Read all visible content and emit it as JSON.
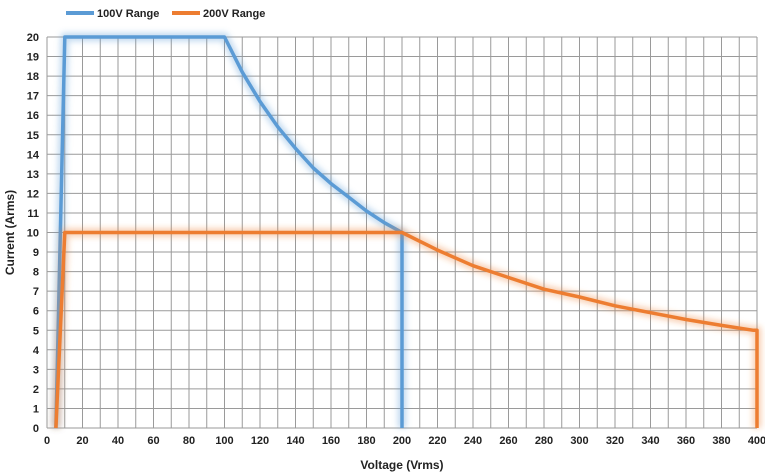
{
  "chart_data": {
    "type": "line",
    "title": "",
    "xlabel": "Voltage (Vrms)",
    "ylabel": "Current (Arms)",
    "xlim": [
      0,
      400
    ],
    "ylim": [
      0,
      20
    ],
    "x_ticks": [
      0,
      20,
      40,
      60,
      80,
      100,
      120,
      140,
      160,
      180,
      200,
      220,
      240,
      260,
      280,
      300,
      320,
      340,
      360,
      380,
      400
    ],
    "y_ticks": [
      0,
      1,
      2,
      3,
      4,
      5,
      6,
      7,
      8,
      9,
      10,
      11,
      12,
      13,
      14,
      15,
      16,
      17,
      18,
      19,
      20
    ],
    "grid": true,
    "legend_position": "top-left",
    "series": [
      {
        "name": "100V Range",
        "color": "#5b9bd5",
        "points": [
          [
            5,
            0
          ],
          [
            10,
            20
          ],
          [
            100,
            20
          ],
          [
            110,
            18.2
          ],
          [
            120,
            16.7
          ],
          [
            130,
            15.4
          ],
          [
            140,
            14.3
          ],
          [
            150,
            13.3
          ],
          [
            160,
            12.5
          ],
          [
            170,
            11.8
          ],
          [
            180,
            11.1
          ],
          [
            190,
            10.5
          ],
          [
            200,
            10
          ],
          [
            200,
            0
          ]
        ]
      },
      {
        "name": "200V Range",
        "color": "#ed7d31",
        "points": [
          [
            5,
            0
          ],
          [
            10,
            10
          ],
          [
            200,
            10
          ],
          [
            220,
            9.1
          ],
          [
            240,
            8.3
          ],
          [
            260,
            7.7
          ],
          [
            280,
            7.1
          ],
          [
            300,
            6.7
          ],
          [
            320,
            6.25
          ],
          [
            340,
            5.9
          ],
          [
            360,
            5.55
          ],
          [
            380,
            5.25
          ],
          [
            398,
            5.0
          ],
          [
            400,
            5.0
          ],
          [
            400,
            0
          ]
        ]
      }
    ]
  }
}
